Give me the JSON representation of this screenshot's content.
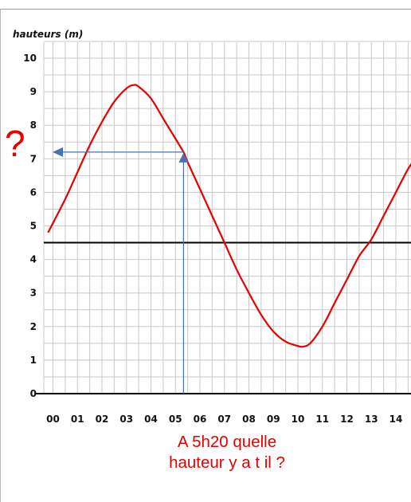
{
  "chart_data": {
    "type": "line",
    "ylabel": "hauteurs (m)",
    "xlabel": "",
    "x_ticks": [
      "00",
      "01",
      "02",
      "03",
      "04",
      "05",
      "06",
      "07",
      "08",
      "09",
      "10",
      "11",
      "12",
      "13",
      "14"
    ],
    "y_ticks": [
      "0",
      "1",
      "2",
      "3",
      "4",
      "5",
      "6",
      "7",
      "8",
      "9",
      "10"
    ],
    "xlim": [
      -0.2,
      14.8
    ],
    "ylim": [
      0,
      10.5
    ],
    "grid": true,
    "reference_lines": [
      {
        "axis": "y",
        "value": 4.5
      },
      {
        "axis": "y",
        "value": 0
      }
    ],
    "series": [
      {
        "color": "#e60000",
        "x": [
          -0.2,
          0.5,
          1.0,
          1.5,
          2.0,
          2.5,
          3.0,
          3.3,
          3.5,
          4.0,
          4.5,
          5.0,
          5.33,
          5.5,
          6.0,
          6.5,
          7.0,
          7.5,
          8.0,
          8.5,
          9.0,
          9.5,
          10.0,
          10.2,
          10.5,
          11.0,
          11.5,
          12.0,
          12.5,
          13.0,
          13.5,
          14.0,
          14.5,
          14.8
        ],
        "y": [
          4.8,
          5.8,
          6.6,
          7.4,
          8.1,
          8.7,
          9.1,
          9.2,
          9.15,
          8.8,
          8.2,
          7.6,
          7.2,
          6.9,
          6.1,
          5.3,
          4.5,
          3.7,
          3.0,
          2.35,
          1.85,
          1.55,
          1.42,
          1.4,
          1.5,
          2.0,
          2.7,
          3.4,
          4.1,
          4.6,
          5.3,
          6.0,
          6.7,
          7.0
        ]
      }
    ],
    "annotation": {
      "x": 5.33,
      "y": 7.2,
      "color": "#4a72b0"
    }
  },
  "question_mark": "?",
  "question_lines": [
    "A 5h20 quelle",
    "hauteur y a t il ?"
  ],
  "colors": {
    "curve": "#e60000",
    "arrow": "#4a72b0",
    "grid": "#c8c8c8",
    "text_red": "#e60000"
  }
}
